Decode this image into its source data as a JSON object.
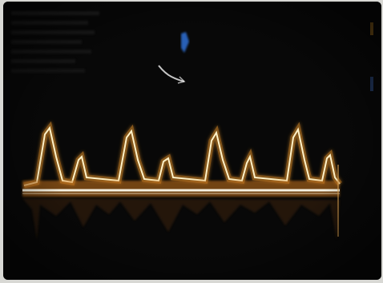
{
  "image": {
    "subject": "doppler-ultrasound-spectral-waveform",
    "colors": {
      "screen": "#080808",
      "frame": "#d8d8d4",
      "waveform_core": "#fff2c8",
      "waveform_glow": "#e8942a",
      "baseline": "#f4f0e0",
      "probe_marker": "#2f6fd6"
    }
  }
}
